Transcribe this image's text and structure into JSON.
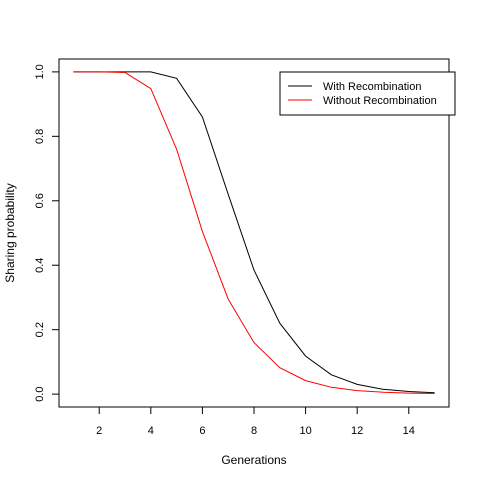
{
  "chart_data": {
    "type": "line",
    "title": "",
    "xlabel": "Generations",
    "ylabel": "Sharing probability",
    "xlim": [
      0.44,
      15.56
    ],
    "ylim": [
      -0.04,
      1.04
    ],
    "xticks": [
      2,
      4,
      6,
      8,
      10,
      12,
      14
    ],
    "xtick_labels": [
      "2",
      "4",
      "6",
      "8",
      "10",
      "12",
      "14"
    ],
    "yticks": [
      0.0,
      0.2,
      0.4,
      0.6,
      0.8,
      1.0
    ],
    "ytick_labels": [
      "0.0",
      "0.2",
      "0.4",
      "0.6",
      "0.8",
      "1.0"
    ],
    "grid": false,
    "legend_position": "top-right",
    "x": [
      1,
      2,
      3,
      4,
      5,
      6,
      7,
      8,
      9,
      10,
      11,
      12,
      13,
      14,
      15
    ],
    "series": [
      {
        "name": "With Recombination",
        "color": "#000000",
        "values": [
          1.0,
          1.0,
          1.0,
          1.0,
          0.98,
          0.86,
          0.62,
          0.385,
          0.22,
          0.118,
          0.06,
          0.03,
          0.015,
          0.008,
          0.004
        ]
      },
      {
        "name": "Without Recombination",
        "color": "#ff0000",
        "values": [
          1.0,
          1.0,
          0.998,
          0.948,
          0.76,
          0.505,
          0.295,
          0.16,
          0.082,
          0.042,
          0.021,
          0.011,
          0.006,
          0.003,
          0.002
        ]
      }
    ]
  }
}
